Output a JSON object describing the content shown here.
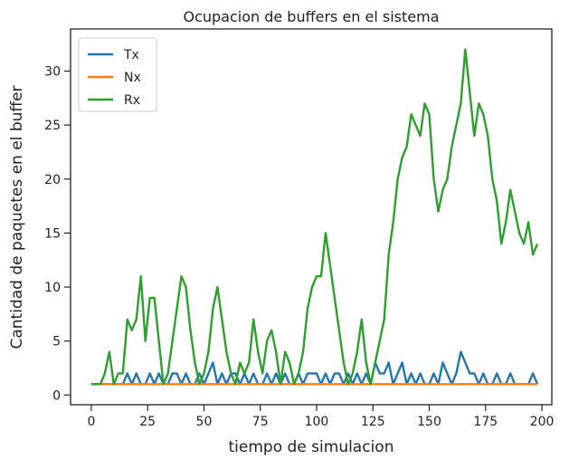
{
  "chart_data": {
    "type": "line",
    "title": "Ocupacion de buffers en el sistema",
    "xlabel": "tiempo de simulacion",
    "ylabel": "Cantidad de paquetes en el buffer",
    "x": [
      0,
      2,
      4,
      6,
      8,
      10,
      12,
      14,
      16,
      18,
      20,
      22,
      24,
      26,
      28,
      30,
      32,
      34,
      36,
      38,
      40,
      42,
      44,
      46,
      48,
      50,
      52,
      54,
      56,
      58,
      60,
      62,
      64,
      66,
      68,
      70,
      72,
      74,
      76,
      78,
      80,
      82,
      84,
      86,
      88,
      90,
      92,
      94,
      96,
      98,
      100,
      102,
      104,
      106,
      108,
      110,
      112,
      114,
      116,
      118,
      120,
      122,
      124,
      126,
      128,
      130,
      132,
      134,
      136,
      138,
      140,
      142,
      144,
      146,
      148,
      150,
      152,
      154,
      156,
      158,
      160,
      162,
      164,
      166,
      168,
      170,
      172,
      174,
      176,
      178,
      180,
      182,
      184,
      186,
      188,
      190,
      192,
      194,
      196,
      198
    ],
    "series": [
      {
        "name": "Tx",
        "color": "#1f77b4",
        "values": [
          1,
          1,
          1,
          1,
          1,
          1,
          1,
          1,
          2,
          1,
          2,
          1,
          1,
          2,
          1,
          2,
          1,
          1,
          2,
          2,
          1,
          2,
          1,
          1,
          2,
          1,
          2,
          3,
          1,
          2,
          1,
          2,
          2,
          1,
          2,
          1,
          2,
          1,
          1,
          2,
          1,
          2,
          1,
          2,
          1,
          1,
          2,
          1,
          2,
          2,
          2,
          1,
          2,
          1,
          2,
          2,
          1,
          2,
          1,
          2,
          1,
          2,
          1,
          3,
          2,
          2,
          3,
          1,
          2,
          3,
          1,
          2,
          1,
          2,
          1,
          1,
          2,
          1,
          3,
          2,
          1,
          2,
          4,
          3,
          2,
          2,
          1,
          2,
          1,
          1,
          2,
          1,
          1,
          2,
          1,
          1,
          1,
          1,
          2,
          1
        ]
      },
      {
        "name": "Nx",
        "color": "#ff7f0e",
        "values": [
          1,
          1,
          1,
          1,
          1,
          1,
          1,
          1,
          1,
          1,
          1,
          1,
          1,
          1,
          1,
          1,
          1,
          1,
          1,
          1,
          1,
          1,
          1,
          1,
          1,
          1,
          1,
          1,
          1,
          1,
          1,
          1,
          1,
          1,
          1,
          1,
          1,
          1,
          1,
          1,
          1,
          1,
          1,
          1,
          1,
          1,
          1,
          1,
          1,
          1,
          1,
          1,
          1,
          1,
          1,
          1,
          1,
          1,
          1,
          1,
          1,
          1,
          1,
          1,
          1,
          1,
          1,
          1,
          1,
          1,
          1,
          1,
          1,
          1,
          1,
          1,
          1,
          1,
          1,
          1,
          1,
          1,
          1,
          1,
          1,
          1,
          1,
          1,
          1,
          1,
          1,
          1,
          1,
          1,
          1,
          1,
          1,
          1,
          1,
          1
        ]
      },
      {
        "name": "Rx",
        "color": "#2ca02c",
        "values": [
          1,
          1,
          1,
          2,
          4,
          1,
          2,
          2,
          7,
          6,
          7,
          11,
          5,
          9,
          9,
          5,
          1,
          2,
          5,
          8,
          11,
          10,
          6,
          3,
          1,
          2,
          4,
          8,
          10,
          7,
          4,
          2,
          1,
          3,
          2,
          3,
          7,
          4,
          2,
          5,
          6,
          4,
          1,
          4,
          3,
          1,
          2,
          4,
          8,
          10,
          11,
          11,
          15,
          12,
          9,
          6,
          3,
          1,
          2,
          4,
          7,
          3,
          1,
          3,
          5,
          7,
          13,
          16,
          20,
          22,
          23,
          26,
          25,
          24,
          27,
          26,
          20,
          17,
          19,
          20,
          23,
          25,
          27,
          32,
          28,
          24,
          27,
          26,
          24,
          20,
          18,
          14,
          16,
          19,
          17,
          15,
          14,
          16,
          13,
          14
        ]
      }
    ],
    "xlim": [
      -9.2,
      204.4
    ],
    "ylim": [
      -0.9,
      33.9
    ],
    "xticks": [
      0,
      25,
      50,
      75,
      100,
      125,
      150,
      175,
      200
    ],
    "yticks": [
      0,
      5,
      10,
      15,
      20,
      25,
      30
    ],
    "legend": "upper left"
  }
}
